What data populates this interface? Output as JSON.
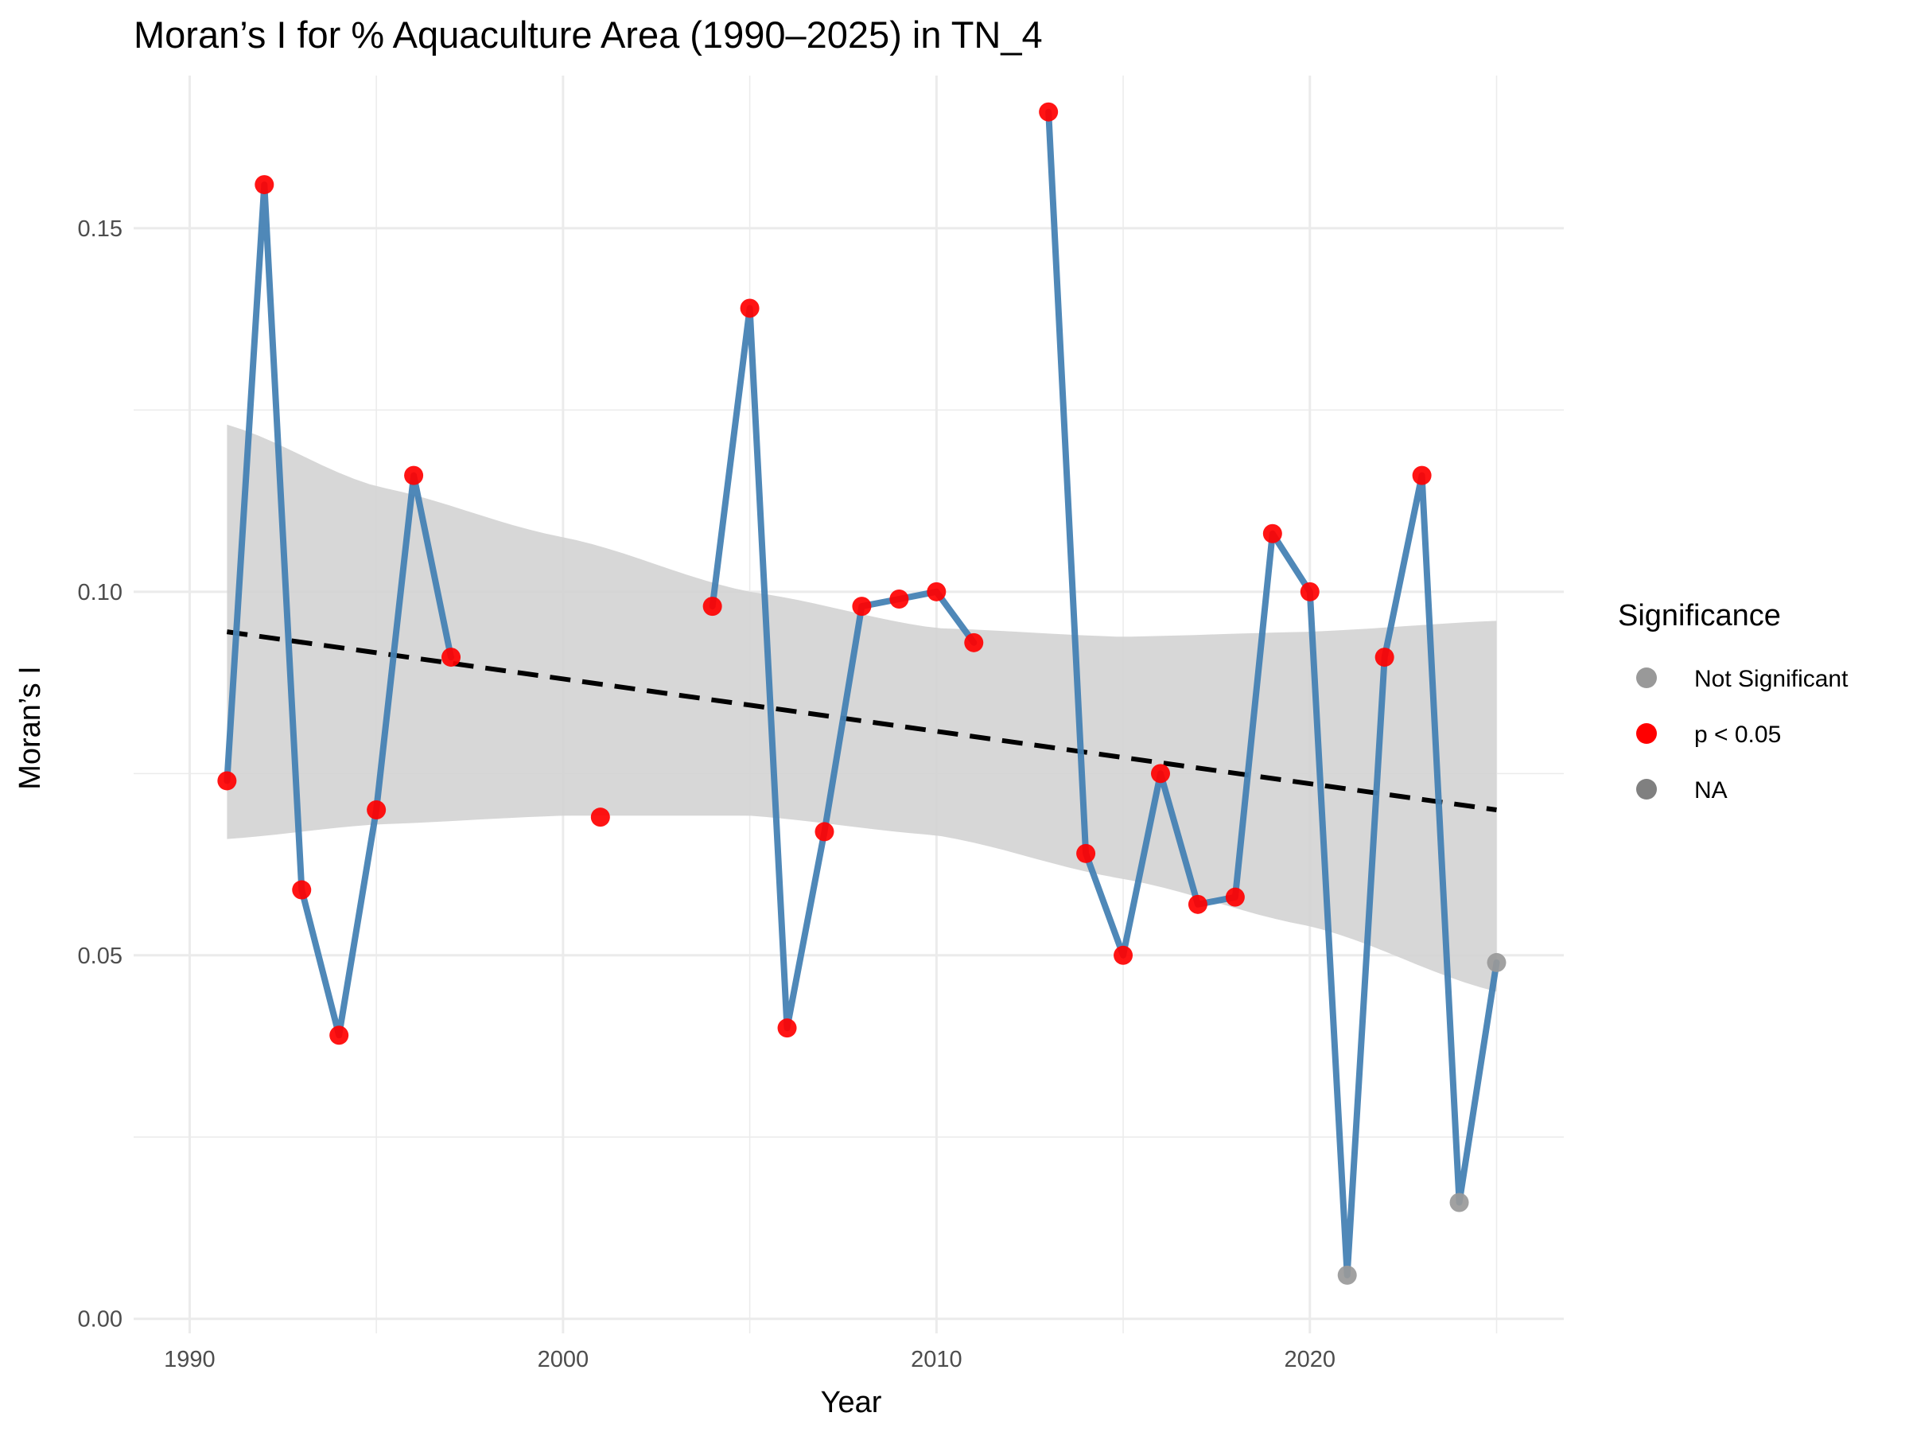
{
  "chart_data": {
    "type": "line",
    "title": "Moran’s I for % Aquaculture Area (1990–2025) in TN_4",
    "xlabel": "Year",
    "ylabel": "Moran’s I",
    "xlim": [
      1988.5,
      2026.8
    ],
    "ylim": [
      -0.002,
      0.171
    ],
    "x_ticks": [
      1990,
      2000,
      2010,
      2020
    ],
    "x_tick_labels": [
      "1990",
      "2000",
      "2010",
      "2020"
    ],
    "x_minor_ticks": [
      1995,
      2005,
      2015,
      2025
    ],
    "y_ticks": [
      0.0,
      0.05,
      0.1,
      0.15
    ],
    "y_tick_labels": [
      "0.00",
      "0.05",
      "0.10",
      "0.15"
    ],
    "y_minor_ticks": [
      0.025,
      0.075,
      0.125
    ],
    "grid": true,
    "line_color": "#4682B4",
    "series": [
      {
        "segments": [
          [
            {
              "x": 1991,
              "y": 0.074,
              "sig": "p < 0.05"
            },
            {
              "x": 1992,
              "y": 0.156,
              "sig": "p < 0.05"
            },
            {
              "x": 1993,
              "y": 0.059,
              "sig": "p < 0.05"
            },
            {
              "x": 1994,
              "y": 0.039,
              "sig": "p < 0.05"
            },
            {
              "x": 1995,
              "y": 0.07,
              "sig": "p < 0.05"
            },
            {
              "x": 1996,
              "y": 0.116,
              "sig": "p < 0.05"
            },
            {
              "x": 1997,
              "y": 0.091,
              "sig": "p < 0.05"
            }
          ],
          [
            {
              "x": 2001,
              "y": 0.069,
              "sig": "p < 0.05"
            }
          ],
          [
            {
              "x": 2004,
              "y": 0.098,
              "sig": "p < 0.05"
            },
            {
              "x": 2005,
              "y": 0.139,
              "sig": "p < 0.05"
            },
            {
              "x": 2006,
              "y": 0.04,
              "sig": "p < 0.05"
            },
            {
              "x": 2007,
              "y": 0.067,
              "sig": "p < 0.05"
            },
            {
              "x": 2008,
              "y": 0.098,
              "sig": "p < 0.05"
            },
            {
              "x": 2009,
              "y": 0.099,
              "sig": "p < 0.05"
            },
            {
              "x": 2010,
              "y": 0.1,
              "sig": "p < 0.05"
            },
            {
              "x": 2011,
              "y": 0.093,
              "sig": "p < 0.05"
            }
          ],
          [
            {
              "x": 2013,
              "y": 0.166,
              "sig": "p < 0.05"
            },
            {
              "x": 2014,
              "y": 0.064,
              "sig": "p < 0.05"
            },
            {
              "x": 2015,
              "y": 0.05,
              "sig": "p < 0.05"
            },
            {
              "x": 2016,
              "y": 0.075,
              "sig": "p < 0.05"
            },
            {
              "x": 2017,
              "y": 0.057,
              "sig": "p < 0.05"
            },
            {
              "x": 2018,
              "y": 0.058,
              "sig": "p < 0.05"
            },
            {
              "x": 2019,
              "y": 0.108,
              "sig": "p < 0.05"
            },
            {
              "x": 2020,
              "y": 0.1,
              "sig": "p < 0.05"
            },
            {
              "x": 2021,
              "y": 0.006,
              "sig": "Not Significant"
            },
            {
              "x": 2022,
              "y": 0.091,
              "sig": "p < 0.05"
            },
            {
              "x": 2023,
              "y": 0.116,
              "sig": "p < 0.05"
            },
            {
              "x": 2024,
              "y": 0.016,
              "sig": "Not Significant"
            },
            {
              "x": 2025,
              "y": 0.049,
              "sig": "Not Significant"
            }
          ]
        ]
      }
    ],
    "trend": {
      "x": [
        1991,
        2025
      ],
      "y": [
        0.0945,
        0.07
      ],
      "style": "dashed",
      "color": "#000000"
    },
    "confidence_band": {
      "x": [
        1991,
        1995,
        2000,
        2005,
        2010,
        2015,
        2020,
        2025
      ],
      "lower": [
        0.066,
        0.068,
        0.0692,
        0.0692,
        0.0665,
        0.0605,
        0.054,
        0.045
      ],
      "upper": [
        0.123,
        0.1145,
        0.1075,
        0.1,
        0.095,
        0.0938,
        0.0945,
        0.096
      ],
      "color": "#d3d3d3"
    },
    "legend": {
      "title": "Significance",
      "position": "right",
      "entries": [
        {
          "label": "Not Significant",
          "color": "#999999"
        },
        {
          "label": "p < 0.05",
          "color": "#ff0000"
        },
        {
          "label": "NA",
          "color": "#808080"
        }
      ]
    }
  }
}
